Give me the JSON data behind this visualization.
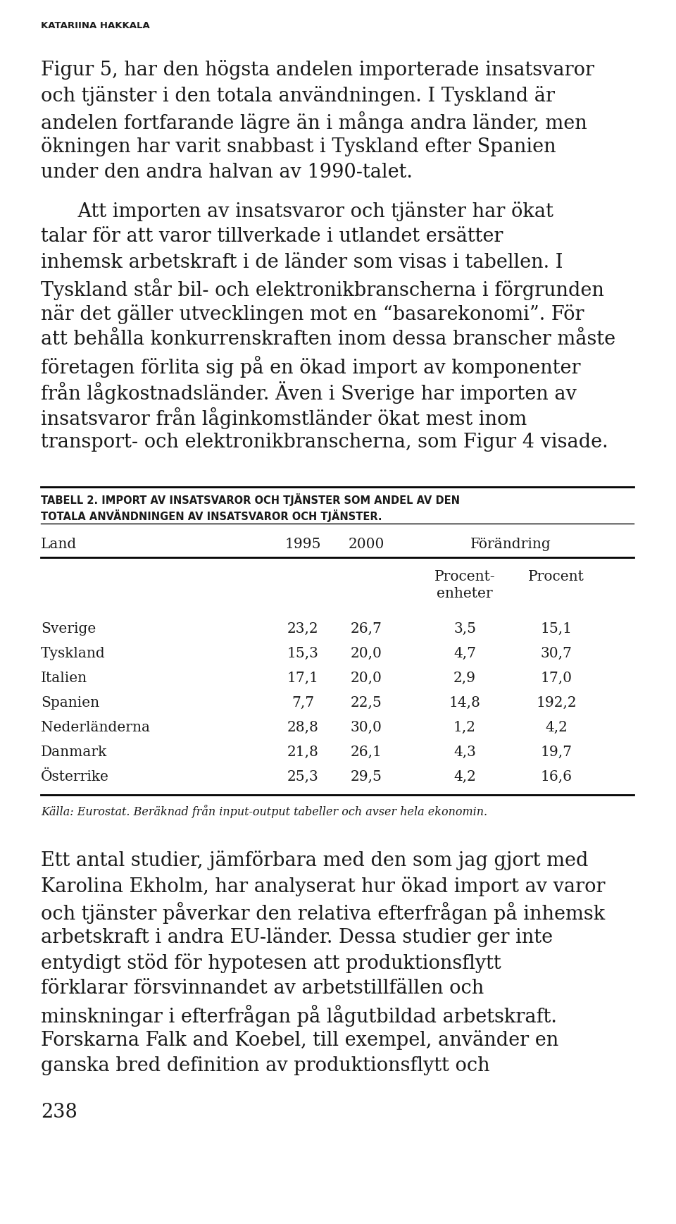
{
  "header": "KATARIINA HAKKALA",
  "para1": "Figur 5, har den högsta andelen importerade insatsvaror och tjänster i den totala användningen. I Tyskland är andelen fortfarande lägre än i många andra länder, men ökningen har varit snabbast i Tyskland efter Spanien under den andra halvan av 1990-talet.",
  "para2": "    Att importen av insatsvaror och tjänster har ökat talar för att varor tillverkade i utlandet ersätter inhemsk arbetskraft i de länder som visas i tabellen. I Tyskland står bil- och elektronikbranscherna i förgrunden när det gäller utvecklingen mot en “basarekonomi”. För att behålla konkurrenskraften inom dessa branscher måste företagen förlita sig på en ökad import av komponenter från lågkostnadsländer. Även i Sverige har importen av insatsvaror från låginkomstländer ökat mest inom transport- och elektronikbranscherna, som Figur 4 visade.",
  "table_title_line1": "TABELL 2. IMPORT AV INSATSVAROR OCH TJÄNSTER SOM ANDEL AV DEN",
  "table_title_line2": "TOTALA ANVÄNDNINGEN AV INSATSVAROR OCH TJÄNSTER.",
  "col_header_land": "Land",
  "col_header_1995": "1995",
  "col_header_2000": "2000",
  "col_header_forandring": "Förändring",
  "subheader_procent_enh": "Procent-\nenheter",
  "subheader_procent": "Procent",
  "rows": [
    [
      "Sverige",
      "23,2",
      "26,7",
      "3,5",
      "15,1"
    ],
    [
      "Tyskland",
      "15,3",
      "20,0",
      "4,7",
      "30,7"
    ],
    [
      "Italien",
      "17,1",
      "20,0",
      "2,9",
      "17,0"
    ],
    [
      "Spanien",
      "7,7",
      "22,5",
      "14,8",
      "192,2"
    ],
    [
      "Nederländerna",
      "28,8",
      "30,0",
      "1,2",
      "4,2"
    ],
    [
      "Danmark",
      "21,8",
      "26,1",
      "4,3",
      "19,7"
    ],
    [
      "Österrike",
      "25,3",
      "29,5",
      "4,2",
      "16,6"
    ]
  ],
  "source": "Källa: Eurostat. Beräknad från input-output tabeller och avser hela ekonomin.",
  "para3": "Ett antal studier, jämförbara med den som jag gjort med Karolina Ekholm, har analyserat hur ökad import av varor och tjänster påverkar den relativa efterfrågan på inhemsk arbetskraft i andra EU-länder. Dessa studier ger inte entydigt stöd för hypotesen att produktionsflytt förklarar försvinnandet av arbetstillfällen och minskningar i efterfrågan på lågutbildad arbetskraft. Forskarna Falk and Koebel, till exempel, använder en ganska bred definition av produktionsflytt och",
  "page_number": "238",
  "background_color": "#ffffff",
  "text_color": "#1a1a1a"
}
